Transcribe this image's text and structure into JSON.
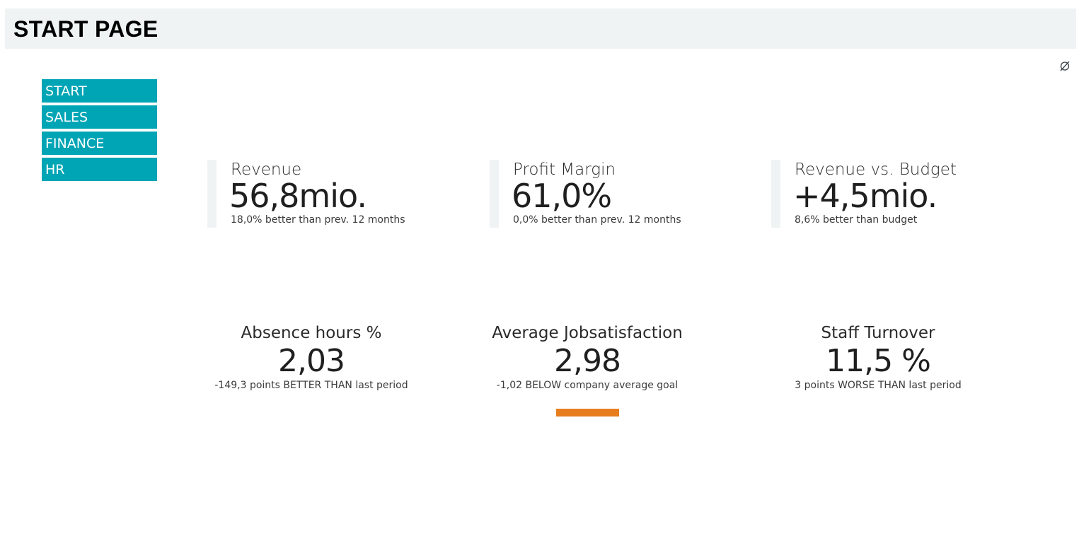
{
  "header": {
    "title": "START PAGE"
  },
  "icons": {
    "corner": "empty-set-icon"
  },
  "nav": {
    "items": [
      {
        "label": "START"
      },
      {
        "label": "SALES"
      },
      {
        "label": "FINANCE"
      },
      {
        "label": "HR"
      }
    ],
    "color": "#00a5b5"
  },
  "kpis": [
    {
      "title": "Revenue",
      "value": "56,8mio.",
      "sub": "18,0% better than prev. 12 months"
    },
    {
      "title": "Profit Margin",
      "value": "61,0%",
      "sub": "0,0% better than prev. 12 months"
    },
    {
      "title": "Revenue vs. Budget",
      "value": "+4,5mio.",
      "sub": "8,6% better than budget"
    }
  ],
  "hr_kpis": [
    {
      "title": "Absence hours %",
      "value": "2,03",
      "sub": "-149,3 points BETTER THAN last period"
    },
    {
      "title": "Average Jobsatisfaction",
      "value": "2,98",
      "sub": "-1,02 BELOW company average goal"
    },
    {
      "title": "Staff Turnover",
      "value": "11,5 %",
      "sub": "3 points WORSE THAN last period"
    }
  ],
  "colors": {
    "header_bg": "#f0f3f4",
    "accent_orange": "#e87d1e"
  }
}
